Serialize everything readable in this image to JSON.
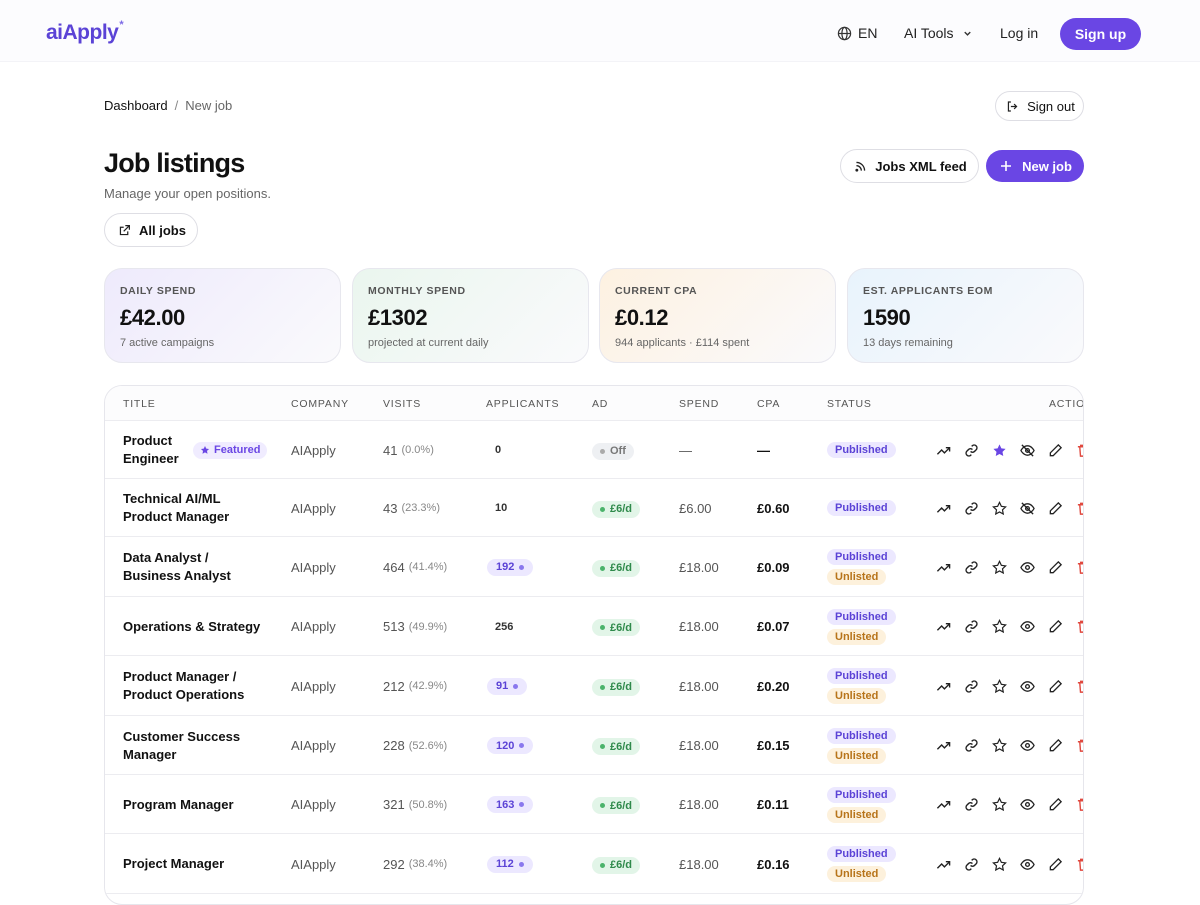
{
  "nav": {
    "logo": "aiApply",
    "logo_mark": "*",
    "lang": "EN",
    "tools": "AI Tools",
    "login": "Log in",
    "signup": "Sign up"
  },
  "breadcrumb": {
    "root": "Dashboard",
    "sep": "/",
    "current": "New job"
  },
  "signout": "Sign out",
  "header": {
    "title": "Job listings",
    "subtitle": "Manage your open positions."
  },
  "buttons": {
    "xml_feed": "Jobs XML feed",
    "new_job": "New job",
    "all_jobs": "All jobs"
  },
  "stats": [
    {
      "label": "DAILY SPEND",
      "value": "£42.00",
      "sub": "7 active campaigns",
      "color": "#eeeafc"
    },
    {
      "label": "MONTHLY SPEND",
      "value": "£1302",
      "sub": "projected at current daily",
      "color": "#eaf6ee"
    },
    {
      "label": "CURRENT CPA",
      "value": "£0.12",
      "sub": "944 applicants · £114 spent",
      "color": "#fdf1e1"
    },
    {
      "label": "EST. APPLICANTS EOM",
      "value": "1590",
      "sub": "13 days remaining",
      "color": "#e8f3fc"
    }
  ],
  "table": {
    "headers": [
      "TITLE",
      "COMPANY",
      "VISITS",
      "APPLICANTS",
      "AD",
      "SPEND",
      "CPA",
      "STATUS",
      "ACTIONS"
    ],
    "featured_label": "Featured",
    "rows": [
      {
        "title": "Product Engineer",
        "featured": true,
        "company": "AIApply",
        "visits": "41",
        "visits_pct": "(0.0%)",
        "applicants": "0",
        "applicants_pill": false,
        "ad": "Off",
        "ad_on": false,
        "spend": "—",
        "cpa": "—",
        "statuses": [
          "Published"
        ],
        "starred": true,
        "hidden": true
      },
      {
        "title": "Technical AI/ML Product Manager",
        "featured": false,
        "company": "AIApply",
        "visits": "43",
        "visits_pct": "(23.3%)",
        "applicants": "10",
        "applicants_pill": false,
        "ad": "£6/d",
        "ad_on": true,
        "spend": "£6.00",
        "cpa": "£0.60",
        "statuses": [
          "Published"
        ],
        "starred": false,
        "hidden": true
      },
      {
        "title": "Data Analyst / Business Analyst",
        "featured": false,
        "company": "AIApply",
        "visits": "464",
        "visits_pct": "(41.4%)",
        "applicants": "192",
        "applicants_pill": true,
        "ad": "£6/d",
        "ad_on": true,
        "spend": "£18.00",
        "cpa": "£0.09",
        "statuses": [
          "Published",
          "Unlisted"
        ],
        "starred": false,
        "hidden": false
      },
      {
        "title": "Operations & Strategy",
        "featured": false,
        "company": "AIApply",
        "visits": "513",
        "visits_pct": "(49.9%)",
        "applicants": "256",
        "applicants_pill": false,
        "ad": "£6/d",
        "ad_on": true,
        "spend": "£18.00",
        "cpa": "£0.07",
        "statuses": [
          "Published",
          "Unlisted"
        ],
        "starred": false,
        "hidden": false
      },
      {
        "title": "Product Manager / Product Operations",
        "featured": false,
        "company": "AIApply",
        "visits": "212",
        "visits_pct": "(42.9%)",
        "applicants": "91",
        "applicants_pill": true,
        "ad": "£6/d",
        "ad_on": true,
        "spend": "£18.00",
        "cpa": "£0.20",
        "statuses": [
          "Published",
          "Unlisted"
        ],
        "starred": false,
        "hidden": false
      },
      {
        "title": "Customer Success Manager",
        "featured": false,
        "company": "AIApply",
        "visits": "228",
        "visits_pct": "(52.6%)",
        "applicants": "120",
        "applicants_pill": true,
        "ad": "£6/d",
        "ad_on": true,
        "spend": "£18.00",
        "cpa": "£0.15",
        "statuses": [
          "Published",
          "Unlisted"
        ],
        "starred": false,
        "hidden": false
      },
      {
        "title": "Program Manager",
        "featured": false,
        "company": "AIApply",
        "visits": "321",
        "visits_pct": "(50.8%)",
        "applicants": "163",
        "applicants_pill": true,
        "ad": "£6/d",
        "ad_on": true,
        "spend": "£18.00",
        "cpa": "£0.11",
        "statuses": [
          "Published",
          "Unlisted"
        ],
        "starred": false,
        "hidden": false
      },
      {
        "title": "Project Manager",
        "featured": false,
        "company": "AIApply",
        "visits": "292",
        "visits_pct": "(38.4%)",
        "applicants": "112",
        "applicants_pill": true,
        "ad": "£6/d",
        "ad_on": true,
        "spend": "£18.00",
        "cpa": "£0.16",
        "statuses": [
          "Published",
          "Unlisted"
        ],
        "starred": false,
        "hidden": false
      }
    ]
  },
  "colors": {
    "accent": "#6a46e4",
    "published": "#5b43d6",
    "unlisted": "#b7741a",
    "ad_on": "#2f8a4b",
    "delete": "#e0483e"
  }
}
